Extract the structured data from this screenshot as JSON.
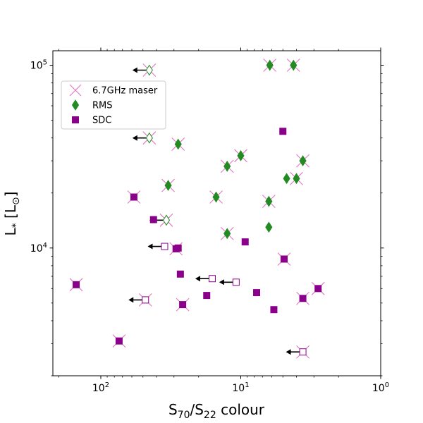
{
  "chart_data": {
    "type": "scatter",
    "x_scale": "log",
    "y_scale": "log",
    "x_reversed": true,
    "xlabel_main": "S",
    "xlabel_sub1": "70",
    "xlabel_mid": "/S",
    "xlabel_sub2": "22",
    "xlabel_tail": " colour",
    "ylabel_main": "L",
    "ylabel_sub": "*",
    "ylabel_unit": " [L",
    "ylabel_sun": "⊙",
    "ylabel_close": "]",
    "xlim": [
      220,
      1
    ],
    "ylim": [
      2000,
      120000
    ],
    "x_ticks": [
      {
        "value": 100,
        "base": "10",
        "exp": "2"
      },
      {
        "value": 10,
        "base": "10",
        "exp": "1"
      },
      {
        "value": 1,
        "base": "10",
        "exp": "0"
      }
    ],
    "y_ticks": [
      {
        "value": 10000,
        "base": "10",
        "exp": "4"
      },
      {
        "value": 100000,
        "base": "10",
        "exp": "5"
      }
    ],
    "legend": {
      "placement": "upper-left",
      "entries": [
        {
          "key": "maser",
          "label": "6.7GHz maser",
          "color": "#e377c2",
          "marker": "x"
        },
        {
          "key": "rms",
          "label": "RMS",
          "color": "#228b22",
          "marker": "diamond"
        },
        {
          "key": "sdc",
          "label": "SDC",
          "color": "#8b008b",
          "marker": "square"
        }
      ]
    },
    "colors": {
      "maser": "#e377c2",
      "rms": "#228b22",
      "sdc": "#8b008b",
      "arrow": "#000000"
    },
    "series": [
      {
        "name": "RMS",
        "points": [
          {
            "x": 45,
            "y": 94000,
            "maser": true,
            "open": true,
            "upper_limit": true
          },
          {
            "x": 45,
            "y": 40000,
            "maser": true,
            "open": true,
            "upper_limit": true
          },
          {
            "x": 28,
            "y": 37000,
            "maser": true
          },
          {
            "x": 33,
            "y": 22000,
            "maser": true
          },
          {
            "x": 34,
            "y": 14200,
            "maser": true,
            "open": true,
            "upper_limit": true
          },
          {
            "x": 15,
            "y": 19000,
            "maser": true
          },
          {
            "x": 12.5,
            "y": 28000,
            "maser": true
          },
          {
            "x": 10,
            "y": 32000,
            "maser": true
          },
          {
            "x": 12.5,
            "y": 12000,
            "maser": true
          },
          {
            "x": 6.2,
            "y": 100000,
            "maser": true
          },
          {
            "x": 4.2,
            "y": 100000,
            "maser": true
          },
          {
            "x": 6.3,
            "y": 18000,
            "maser": true
          },
          {
            "x": 6.3,
            "y": 13000,
            "maser": false
          },
          {
            "x": 4.7,
            "y": 24000,
            "maser": false
          },
          {
            "x": 4.0,
            "y": 24000,
            "maser": true
          },
          {
            "x": 3.6,
            "y": 30000,
            "maser": true
          }
        ]
      },
      {
        "name": "SDC",
        "points": [
          {
            "x": 58,
            "y": 19000,
            "maser": true
          },
          {
            "x": 42,
            "y": 14300,
            "maser": false
          },
          {
            "x": 35,
            "y": 10200,
            "maser": false,
            "open": true,
            "upper_limit": true
          },
          {
            "x": 29,
            "y": 9900,
            "maser": true
          },
          {
            "x": 28,
            "y": 10000,
            "maser": false
          },
          {
            "x": 27,
            "y": 7200,
            "maser": false
          },
          {
            "x": 150,
            "y": 6300,
            "maser": true
          },
          {
            "x": 48,
            "y": 5200,
            "maser": true,
            "open": true,
            "upper_limit": true
          },
          {
            "x": 26,
            "y": 4900,
            "maser": true
          },
          {
            "x": 17.5,
            "y": 5500,
            "maser": false
          },
          {
            "x": 16,
            "y": 6800,
            "maser": false,
            "open": true,
            "upper_limit": true
          },
          {
            "x": 10.8,
            "y": 6500,
            "maser": false,
            "open": true,
            "upper_limit": true
          },
          {
            "x": 9.3,
            "y": 10800,
            "maser": false
          },
          {
            "x": 7.7,
            "y": 5700,
            "maser": false
          },
          {
            "x": 5.0,
            "y": 43500,
            "maser": false
          },
          {
            "x": 4.9,
            "y": 8700,
            "maser": true
          },
          {
            "x": 5.8,
            "y": 4600,
            "maser": false
          },
          {
            "x": 3.6,
            "y": 5300,
            "maser": true
          },
          {
            "x": 2.8,
            "y": 6000,
            "maser": true
          },
          {
            "x": 3.6,
            "y": 2700,
            "maser": true,
            "open": true,
            "upper_limit": true
          },
          {
            "x": 74,
            "y": 3100,
            "maser": true
          }
        ]
      }
    ]
  }
}
